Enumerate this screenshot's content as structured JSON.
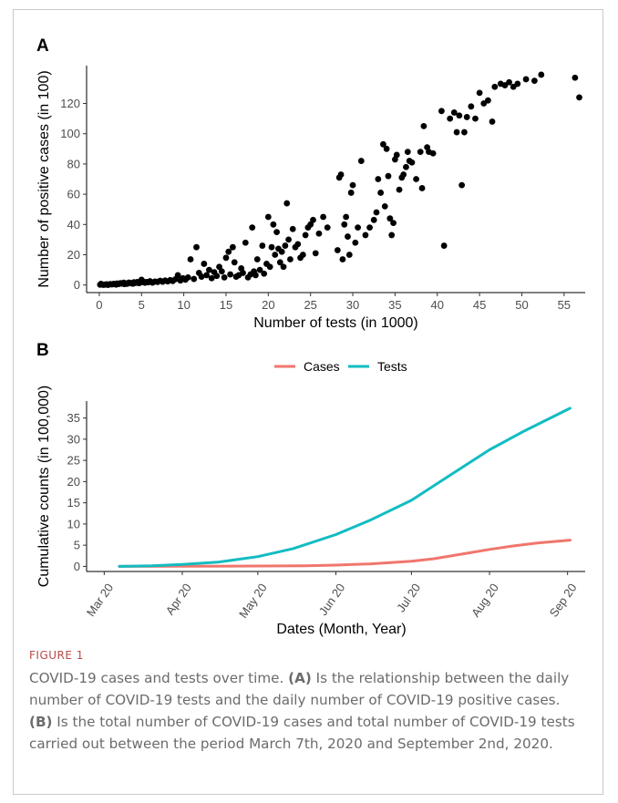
{
  "chart_data": [
    {
      "panel": "A",
      "type": "scatter",
      "xlabel": "Number of tests (in 1000)",
      "ylabel": "Number of positive cases (in 100)",
      "xlim": [
        -1.5,
        57.5
      ],
      "ylim": [
        -5,
        145
      ],
      "xticks": [
        0,
        5,
        10,
        15,
        20,
        25,
        30,
        35,
        40,
        45,
        50,
        55
      ],
      "yticks": [
        0,
        20,
        40,
        60,
        80,
        100,
        120
      ],
      "grid": false,
      "points": [
        [
          0.1,
          0.2
        ],
        [
          0.3,
          0.4
        ],
        [
          0.5,
          0.1
        ],
        [
          0.7,
          0.3
        ],
        [
          0.9,
          0.5
        ],
        [
          1.1,
          0.2
        ],
        [
          1.3,
          0.6
        ],
        [
          1.5,
          0.4
        ],
        [
          1.7,
          0.8
        ],
        [
          1.9,
          0.5
        ],
        [
          2.1,
          1.0
        ],
        [
          2.3,
          0.7
        ],
        [
          2.5,
          1.2
        ],
        [
          2.7,
          0.9
        ],
        [
          2.9,
          1.5
        ],
        [
          3.1,
          1.1
        ],
        [
          3.3,
          0.8
        ],
        [
          3.5,
          1.6
        ],
        [
          3.7,
          1.3
        ],
        [
          3.9,
          1.0
        ],
        [
          4.1,
          1.8
        ],
        [
          4.3,
          1.4
        ],
        [
          4.5,
          2.0
        ],
        [
          4.7,
          1.2
        ],
        [
          4.9,
          1.7
        ],
        [
          5.0,
          3.5
        ],
        [
          5.2,
          2.3
        ],
        [
          5.4,
          1.5
        ],
        [
          5.6,
          2.0
        ],
        [
          5.8,
          1.8
        ],
        [
          6.0,
          2.5
        ],
        [
          6.3,
          1.6
        ],
        [
          6.6,
          2.3
        ],
        [
          6.9,
          2.0
        ],
        [
          7.2,
          2.8
        ],
        [
          7.5,
          2.2
        ],
        [
          7.8,
          3.0
        ],
        [
          8.1,
          2.4
        ],
        [
          8.4,
          3.3
        ],
        [
          8.7,
          2.6
        ],
        [
          9.0,
          3.8
        ],
        [
          9.3,
          6.5
        ],
        [
          9.6,
          3.0
        ],
        [
          9.9,
          4.5
        ],
        [
          10.2,
          3.5
        ],
        [
          10.5,
          5.0
        ],
        [
          10.8,
          17
        ],
        [
          11.2,
          4.0
        ],
        [
          11.5,
          25
        ],
        [
          11.8,
          8.0
        ],
        [
          12.1,
          5.5
        ],
        [
          12.4,
          14
        ],
        [
          12.7,
          6.5
        ],
        [
          13.0,
          10
        ],
        [
          13.3,
          4.5
        ],
        [
          13.6,
          8.5
        ],
        [
          13.9,
          6.0
        ],
        [
          14.2,
          12
        ],
        [
          14.5,
          9.0
        ],
        [
          14.8,
          5.0
        ],
        [
          15.0,
          18
        ],
        [
          15.3,
          22
        ],
        [
          15.5,
          7.0
        ],
        [
          15.8,
          25
        ],
        [
          16.0,
          15
        ],
        [
          16.2,
          5.5
        ],
        [
          16.5,
          6.5
        ],
        [
          16.8,
          11
        ],
        [
          17.0,
          8.0
        ],
        [
          17.3,
          28
        ],
        [
          17.6,
          5.0
        ],
        [
          17.9,
          7.0
        ],
        [
          18.1,
          38
        ],
        [
          18.3,
          9.0
        ],
        [
          18.5,
          6.5
        ],
        [
          18.7,
          17
        ],
        [
          19.0,
          10
        ],
        [
          19.3,
          26
        ],
        [
          19.5,
          7.5
        ],
        [
          19.8,
          14
        ],
        [
          20.0,
          45
        ],
        [
          20.2,
          12
        ],
        [
          20.4,
          25
        ],
        [
          20.6,
          40
        ],
        [
          20.8,
          20
        ],
        [
          21.0,
          35
        ],
        [
          21.2,
          24
        ],
        [
          21.4,
          15
        ],
        [
          21.6,
          22
        ],
        [
          21.8,
          12
        ],
        [
          22.0,
          26
        ],
        [
          22.2,
          54
        ],
        [
          22.4,
          30
        ],
        [
          22.6,
          17
        ],
        [
          22.9,
          37
        ],
        [
          23.2,
          25
        ],
        [
          23.5,
          27
        ],
        [
          23.8,
          18
        ],
        [
          24.1,
          20
        ],
        [
          24.4,
          33
        ],
        [
          24.7,
          38
        ],
        [
          25.0,
          40
        ],
        [
          25.3,
          43
        ],
        [
          25.6,
          21
        ],
        [
          26.0,
          34
        ],
        [
          26.5,
          45
        ],
        [
          27.0,
          38
        ],
        [
          28.2,
          23
        ],
        [
          28.4,
          71
        ],
        [
          28.6,
          73
        ],
        [
          28.8,
          17
        ],
        [
          29.0,
          40
        ],
        [
          29.2,
          45
        ],
        [
          29.4,
          32
        ],
        [
          29.6,
          20
        ],
        [
          29.8,
          61
        ],
        [
          30.0,
          66
        ],
        [
          30.3,
          28
        ],
        [
          30.6,
          38
        ],
        [
          31.0,
          82
        ],
        [
          31.5,
          33
        ],
        [
          32.0,
          38
        ],
        [
          32.5,
          43
        ],
        [
          32.8,
          48
        ],
        [
          33.0,
          70
        ],
        [
          33.3,
          61
        ],
        [
          33.6,
          93
        ],
        [
          33.8,
          52
        ],
        [
          34.0,
          90
        ],
        [
          34.2,
          72
        ],
        [
          34.4,
          44
        ],
        [
          34.6,
          33
        ],
        [
          34.8,
          41
        ],
        [
          35.0,
          83
        ],
        [
          35.2,
          86
        ],
        [
          35.5,
          63
        ],
        [
          35.8,
          71
        ],
        [
          36.0,
          73
        ],
        [
          36.3,
          78
        ],
        [
          36.5,
          88
        ],
        [
          36.7,
          82
        ],
        [
          37.0,
          81
        ],
        [
          37.5,
          70
        ],
        [
          38.0,
          88
        ],
        [
          38.2,
          64
        ],
        [
          38.4,
          105
        ],
        [
          38.8,
          91
        ],
        [
          39.0,
          88
        ],
        [
          39.5,
          87
        ],
        [
          40.5,
          115
        ],
        [
          40.8,
          26
        ],
        [
          41.5,
          110
        ],
        [
          42.0,
          114
        ],
        [
          42.3,
          101
        ],
        [
          42.6,
          112
        ],
        [
          42.9,
          66
        ],
        [
          43.2,
          101
        ],
        [
          43.5,
          111
        ],
        [
          44.0,
          118
        ],
        [
          44.5,
          110
        ],
        [
          45.0,
          127
        ],
        [
          45.5,
          120
        ],
        [
          46.0,
          122
        ],
        [
          46.5,
          108
        ],
        [
          46.8,
          131
        ],
        [
          47.5,
          133
        ],
        [
          48.0,
          132
        ],
        [
          48.5,
          134
        ],
        [
          49.0,
          131
        ],
        [
          49.5,
          133
        ],
        [
          50.5,
          136
        ],
        [
          51.5,
          135
        ],
        [
          52.3,
          139
        ],
        [
          56.3,
          137
        ],
        [
          56.8,
          124
        ],
        [
          0.2,
          0.8
        ],
        [
          1.0,
          0.1
        ],
        [
          2.0,
          0.3
        ],
        [
          3.0,
          0.6
        ],
        [
          4.0,
          0.9
        ]
      ]
    },
    {
      "panel": "B",
      "type": "line",
      "xlabel": "Dates (Month, Year)",
      "ylabel": "Cumulative counts (in 100,000)",
      "ylim": [
        -1.2,
        39
      ],
      "yticks": [
        0,
        5,
        10,
        15,
        20,
        25,
        30,
        35
      ],
      "xticks": [
        "Mar 20",
        "Apr 20",
        "May 20",
        "Jun 20",
        "Jul 20",
        "Aug 20",
        "Sep 20"
      ],
      "xtick_dates": [
        "2020-03-01",
        "2020-04-01",
        "2020-05-01",
        "2020-06-01",
        "2020-07-01",
        "2020-08-01",
        "2020-09-01"
      ],
      "xlim_dates": [
        "2020-02-23",
        "2020-09-08"
      ],
      "grid": false,
      "legend_position": "top",
      "series": [
        {
          "name": "Cases",
          "color": "#f0766d",
          "points": [
            [
              "2020-03-07",
              0.0
            ],
            [
              "2020-04-01",
              0.02
            ],
            [
              "2020-05-01",
              0.08
            ],
            [
              "2020-05-20",
              0.15
            ],
            [
              "2020-06-01",
              0.3
            ],
            [
              "2020-06-15",
              0.6
            ],
            [
              "2020-07-01",
              1.2
            ],
            [
              "2020-07-10",
              1.8
            ],
            [
              "2020-07-20",
              2.8
            ],
            [
              "2020-08-01",
              4.0
            ],
            [
              "2020-08-10",
              4.8
            ],
            [
              "2020-08-20",
              5.5
            ],
            [
              "2020-09-02",
              6.2
            ]
          ]
        },
        {
          "name": "Tests",
          "color": "#12bcc2",
          "points": [
            [
              "2020-03-07",
              0.0
            ],
            [
              "2020-03-20",
              0.15
            ],
            [
              "2020-04-01",
              0.45
            ],
            [
              "2020-04-15",
              1.0
            ],
            [
              "2020-05-01",
              2.3
            ],
            [
              "2020-05-15",
              4.2
            ],
            [
              "2020-06-01",
              7.5
            ],
            [
              "2020-06-15",
              11.0
            ],
            [
              "2020-07-01",
              15.6
            ],
            [
              "2020-07-15",
              21.0
            ],
            [
              "2020-08-01",
              27.5
            ],
            [
              "2020-08-15",
              32.0
            ],
            [
              "2020-09-02",
              37.3
            ]
          ]
        }
      ]
    }
  ],
  "panels": {
    "a_label": "A",
    "b_label": "B"
  },
  "caption": {
    "label": "FIGURE 1",
    "intro": "COVID-19 cases and tests over time. ",
    "a_ref": "(A)",
    "a_text": " Is the relationship between the daily number of COVID-19 tests and the daily number of COVID-19 positive cases. ",
    "b_ref": "(B)",
    "b_text": " Is the total number of COVID-19 cases and total number of COVID-19 tests carried out between the period March 7th, 2020 and September 2nd, 2020."
  }
}
